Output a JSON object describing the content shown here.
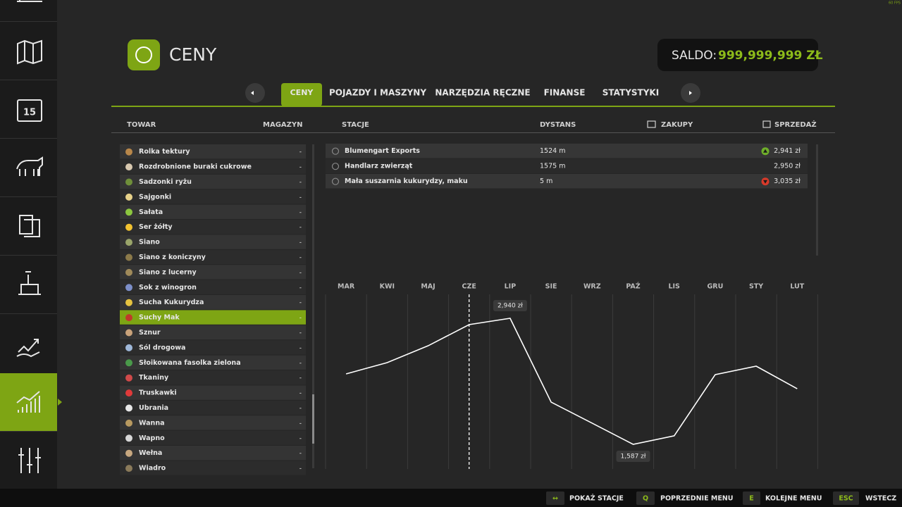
{
  "fps": "60 FPS",
  "header": {
    "title": "CENY",
    "balance_label": "SALDO:",
    "balance_value": "999,999,999 ZŁ"
  },
  "tabs": {
    "items": [
      "CENY",
      "POJAZDY I MASZYNY",
      "NARZĘDZIA RĘCZNE",
      "FINANSE",
      "STATYSTYKI"
    ],
    "active": 0
  },
  "columns": {
    "goods": "TOWAR",
    "stock": "MAGAZYN",
    "stations": "STACJE",
    "distance": "DYSTANS",
    "buy": "ZAKUPY",
    "sell": "SPRZEDAŻ"
  },
  "goods": {
    "selected": 11,
    "rows": [
      {
        "name": "Rolka tektury",
        "stock": "-",
        "color": "#b8874a"
      },
      {
        "name": "Rozdrobnione buraki cukrowe",
        "stock": "-",
        "color": "#d9c9b0"
      },
      {
        "name": "Sadzonki ryżu",
        "stock": "-",
        "color": "#6f8f3a"
      },
      {
        "name": "Sajgonki",
        "stock": "-",
        "color": "#e8d28a"
      },
      {
        "name": "Sałata",
        "stock": "-",
        "color": "#8cc63f"
      },
      {
        "name": "Ser żółty",
        "stock": "-",
        "color": "#f2c230"
      },
      {
        "name": "Siano",
        "stock": "-",
        "color": "#9aa56a"
      },
      {
        "name": "Siano z koniczyny",
        "stock": "-",
        "color": "#8c7a4a"
      },
      {
        "name": "Siano z lucerny",
        "stock": "-",
        "color": "#a08a5a"
      },
      {
        "name": "Sok z winogron",
        "stock": "-",
        "color": "#7d8fc9"
      },
      {
        "name": "Sucha Kukurydza",
        "stock": "-",
        "color": "#e6c340"
      },
      {
        "name": "Suchy Mak",
        "stock": "-",
        "color": "#c0392b"
      },
      {
        "name": "Sznur",
        "stock": "-",
        "color": "#c9a27a"
      },
      {
        "name": "Sól drogowa",
        "stock": "-",
        "color": "#9fb8d9"
      },
      {
        "name": "Słoikowana fasolka zielona",
        "stock": "-",
        "color": "#4a9a4a"
      },
      {
        "name": "Tkaniny",
        "stock": "-",
        "color": "#d04a4a"
      },
      {
        "name": "Truskawki",
        "stock": "-",
        "color": "#e03a3a"
      },
      {
        "name": "Ubrania",
        "stock": "-",
        "color": "#e8e8e8"
      },
      {
        "name": "Wanna",
        "stock": "-",
        "color": "#b89a60"
      },
      {
        "name": "Wapno",
        "stock": "-",
        "color": "#d8d8d8"
      },
      {
        "name": "Wełna",
        "stock": "-",
        "color": "#c8a880"
      },
      {
        "name": "Wiadro",
        "stock": "-",
        "color": "#8a7a5a"
      }
    ]
  },
  "stations": [
    {
      "name": "Blumengart Exports",
      "distance": "1524 m",
      "price": "2,941 zł",
      "trend": "up"
    },
    {
      "name": "Handlarz zwierząt",
      "distance": "1575 m",
      "price": "2,950 zł",
      "trend": null
    },
    {
      "name": "Mała suszarnia kukurydzy, maku",
      "distance": "5 m",
      "price": "3,035 zł",
      "trend": "down"
    }
  ],
  "chart_data": {
    "type": "line",
    "categories": [
      "MAR",
      "KWI",
      "MAJ",
      "CZE",
      "LIP",
      "SIE",
      "WRZ",
      "PAŹ",
      "LIS",
      "GRU",
      "STY",
      "LUT"
    ],
    "values": [
      2343,
      2464,
      2645,
      2872,
      2940,
      2040,
      1814,
      1587,
      1678,
      2335,
      2426,
      2184
    ],
    "value_labels": [
      null,
      null,
      null,
      null,
      "2,940 zł",
      null,
      null,
      "1,587 zł",
      null,
      null,
      null,
      null
    ],
    "current_index": 3,
    "color": "#ffffff"
  },
  "footer": [
    {
      "key": "↔",
      "label": "POKAŻ STACJE"
    },
    {
      "key": "Q",
      "label": "POPRZEDNIE MENU"
    },
    {
      "key": "E",
      "label": "KOLEJNE MENU"
    },
    {
      "key": "ESC",
      "label": "WSTECZ"
    }
  ]
}
